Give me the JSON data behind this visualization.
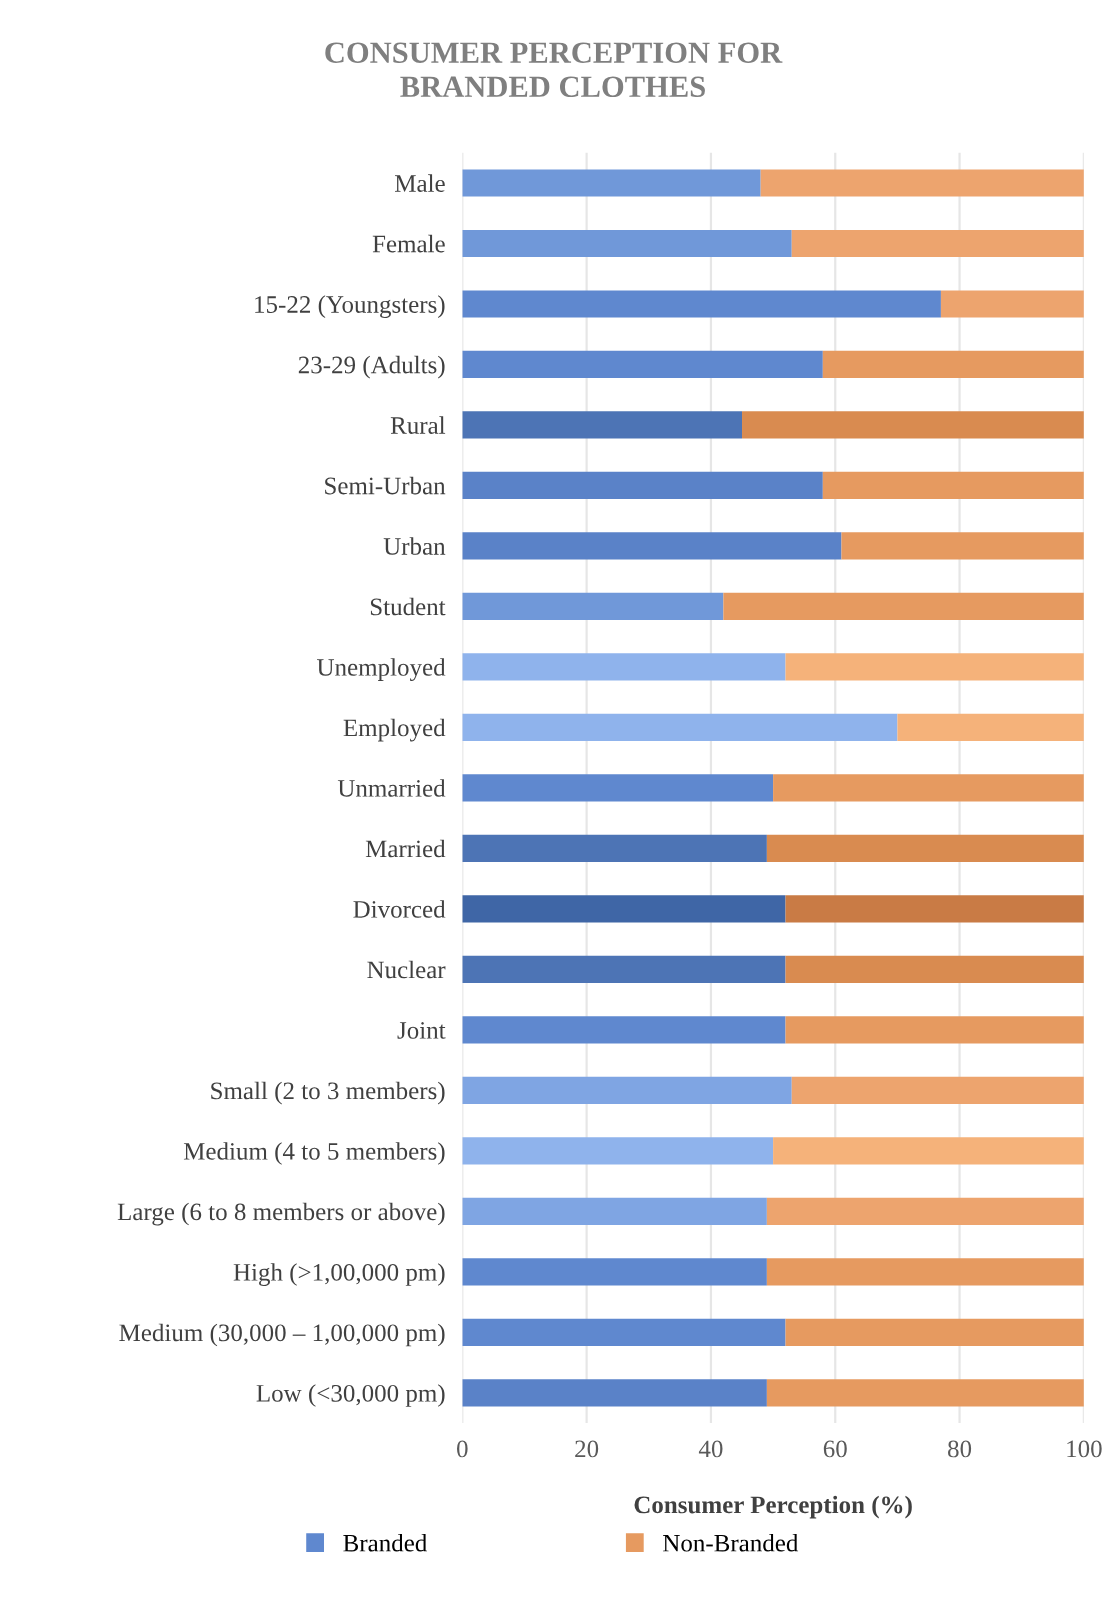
{
  "chart_data": {
    "type": "bar",
    "orientation": "horizontal",
    "stacked": true,
    "title": "CONSUMER PERCEPTION FOR\nBRANDED CLOTHES",
    "xlabel": "Consumer Perception (%)",
    "categories": [
      "Male",
      "Female",
      "15-22 (Youngsters)",
      "23-29 (Adults)",
      "Rural",
      "Semi-Urban",
      "Urban",
      "Student",
      "Unemployed",
      "Employed",
      "Unmarried",
      "Married",
      "Divorced",
      "Nuclear",
      "Joint",
      "Small (2 to 3 members)",
      "Medium (4 to 5 members)",
      "Large (6 to 8 members or above)",
      "High (>1,00,000 pm)",
      "Medium (30,000 – 1,00,000 pm)",
      "Low (<30,000 pm)"
    ],
    "series": [
      {
        "name": "Branded",
        "color": "#5f88cf",
        "values": [
          48,
          53,
          77,
          58,
          45,
          58,
          61,
          42,
          52,
          70,
          50,
          49,
          52,
          52,
          52,
          53,
          50,
          49,
          49,
          52,
          49
        ],
        "colors": [
          "#7098d9",
          "#7098d9",
          "#5f88cf",
          "#5f88cf",
          "#4d74b5",
          "#5a82c8",
          "#5a82c8",
          "#7098d9",
          "#8fb3ec",
          "#8fb3ec",
          "#5f88cf",
          "#4d74b5",
          "#3f66a6",
          "#4d74b5",
          "#5f88cf",
          "#7fa5e3",
          "#8fb3ec",
          "#7fa5e3",
          "#5f88cf",
          "#5f88cf",
          "#5a82c8"
        ]
      },
      {
        "name": "Non-Branded",
        "color": "#e69a60",
        "values": [
          52,
          47,
          23,
          42,
          55,
          42,
          39,
          58,
          48,
          30,
          50,
          51,
          48,
          48,
          48,
          47,
          50,
          51,
          51,
          48,
          51
        ],
        "colors": [
          "#eda46e",
          "#eda46e",
          "#eda46e",
          "#e69a60",
          "#d98b50",
          "#e69a60",
          "#e69a60",
          "#e69a60",
          "#f5b27a",
          "#f5b27a",
          "#e69a60",
          "#d98b50",
          "#c97b45",
          "#d98b50",
          "#e69a60",
          "#eda46e",
          "#f5b27a",
          "#eda46e",
          "#e69a60",
          "#e69a60",
          "#e69a60"
        ]
      }
    ],
    "xlim": [
      0,
      100
    ],
    "xticks": [
      0,
      20,
      40,
      60,
      80,
      100
    ],
    "grid": "x",
    "legend": "bottom"
  }
}
